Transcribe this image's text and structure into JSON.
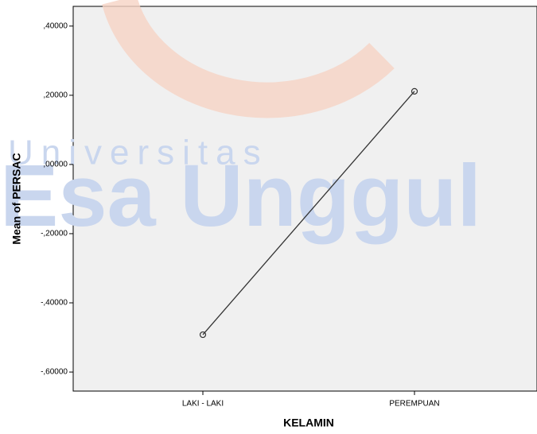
{
  "chart_data": {
    "type": "line",
    "x_label": "KELAMIN",
    "y_label": "Mean of PERSAC",
    "categories": [
      "LAKI - LAKI",
      "PEREMPUAN"
    ],
    "series": [
      {
        "name": "Mean of PERSAC",
        "color": "#333333",
        "values": [
          -0.492,
          0.2115
        ]
      }
    ],
    "ylim": [
      -0.655,
      0.457
    ],
    "yticks": [
      {
        "value": 0.4,
        "label": ",40000"
      },
      {
        "value": 0.2,
        "label": ",20000"
      },
      {
        "value": 0,
        "label": ",00000"
      },
      {
        "value": -0.2,
        "label": "-,20000"
      },
      {
        "value": -0.4,
        "label": "-,40000"
      },
      {
        "value": -0.6,
        "label": "-,60000"
      }
    ],
    "watermark": [
      "Universitas",
      "Esa Unggul"
    ]
  }
}
